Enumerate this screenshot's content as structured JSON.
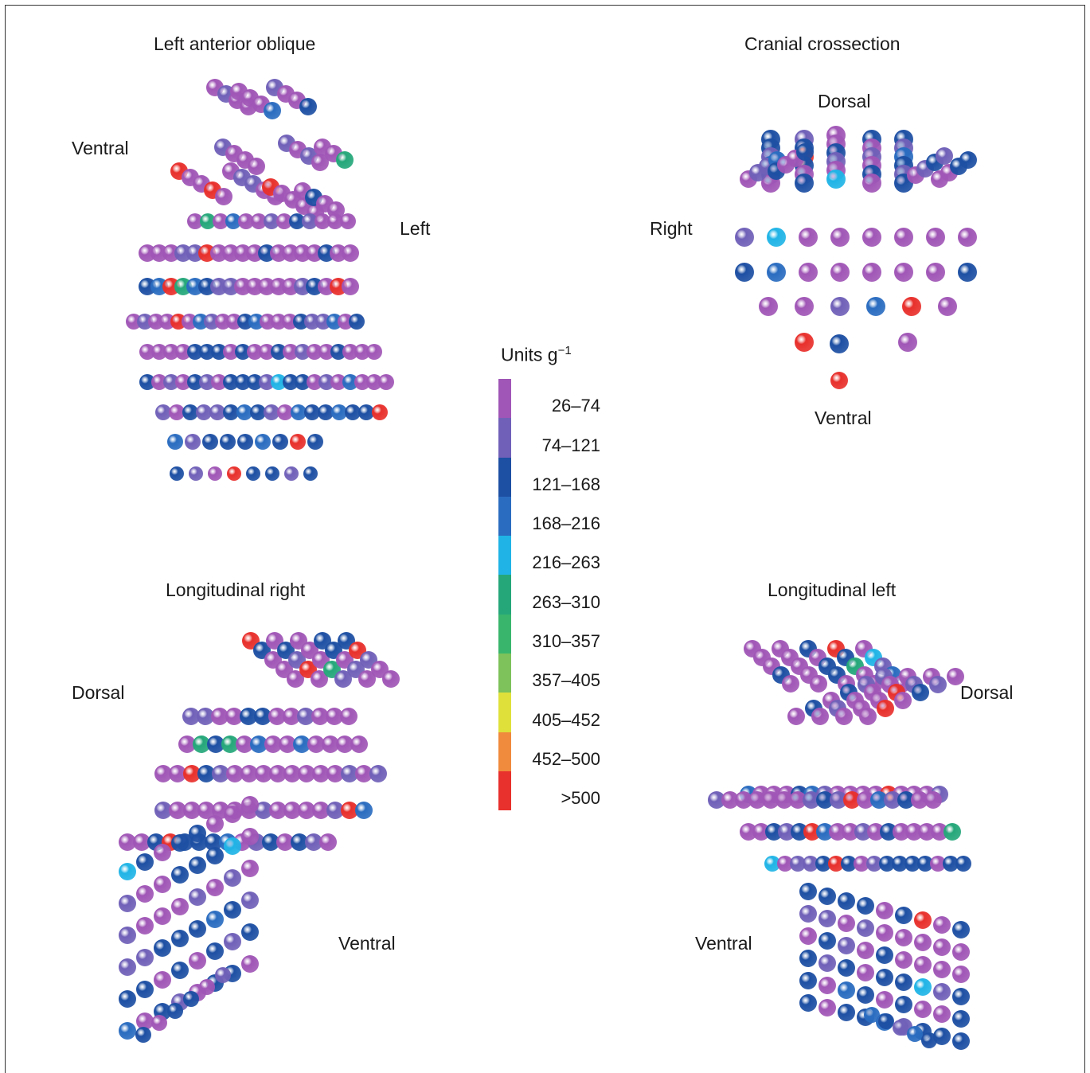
{
  "panels": {
    "lao": {
      "title": "Left anterior oblique",
      "labels": [
        "Ventral",
        "Left"
      ]
    },
    "cranial": {
      "title": "Cranial crossection",
      "labels": [
        "Dorsal",
        "Right",
        "Ventral"
      ]
    },
    "long_right": {
      "title": "Longitudinal right",
      "labels": [
        "Dorsal",
        "Ventral"
      ]
    },
    "long_left": {
      "title": "Longitudinal left",
      "labels": [
        "Dorsal",
        "Ventral"
      ]
    }
  },
  "legend": {
    "title": "Units g",
    "exponent": "−1",
    "items": [
      {
        "label": "26–74",
        "color": "#a056b6"
      },
      {
        "label": "74–121",
        "color": "#7060b8"
      },
      {
        "label": "121–168",
        "color": "#1d4fa3"
      },
      {
        "label": "168–216",
        "color": "#2a6cc0"
      },
      {
        "label": "216–263",
        "color": "#20b4e6"
      },
      {
        "label": "263–310",
        "color": "#25a77a"
      },
      {
        "label": "310–357",
        "color": "#39b66c"
      },
      {
        "label": "357–405",
        "color": "#7dc25a"
      },
      {
        "label": "405–452",
        "color": "#dfe03a"
      },
      {
        "label": "452–500",
        "color": "#f08a3c"
      },
      {
        "label": ">500",
        "color": "#e8302c"
      }
    ]
  }
}
